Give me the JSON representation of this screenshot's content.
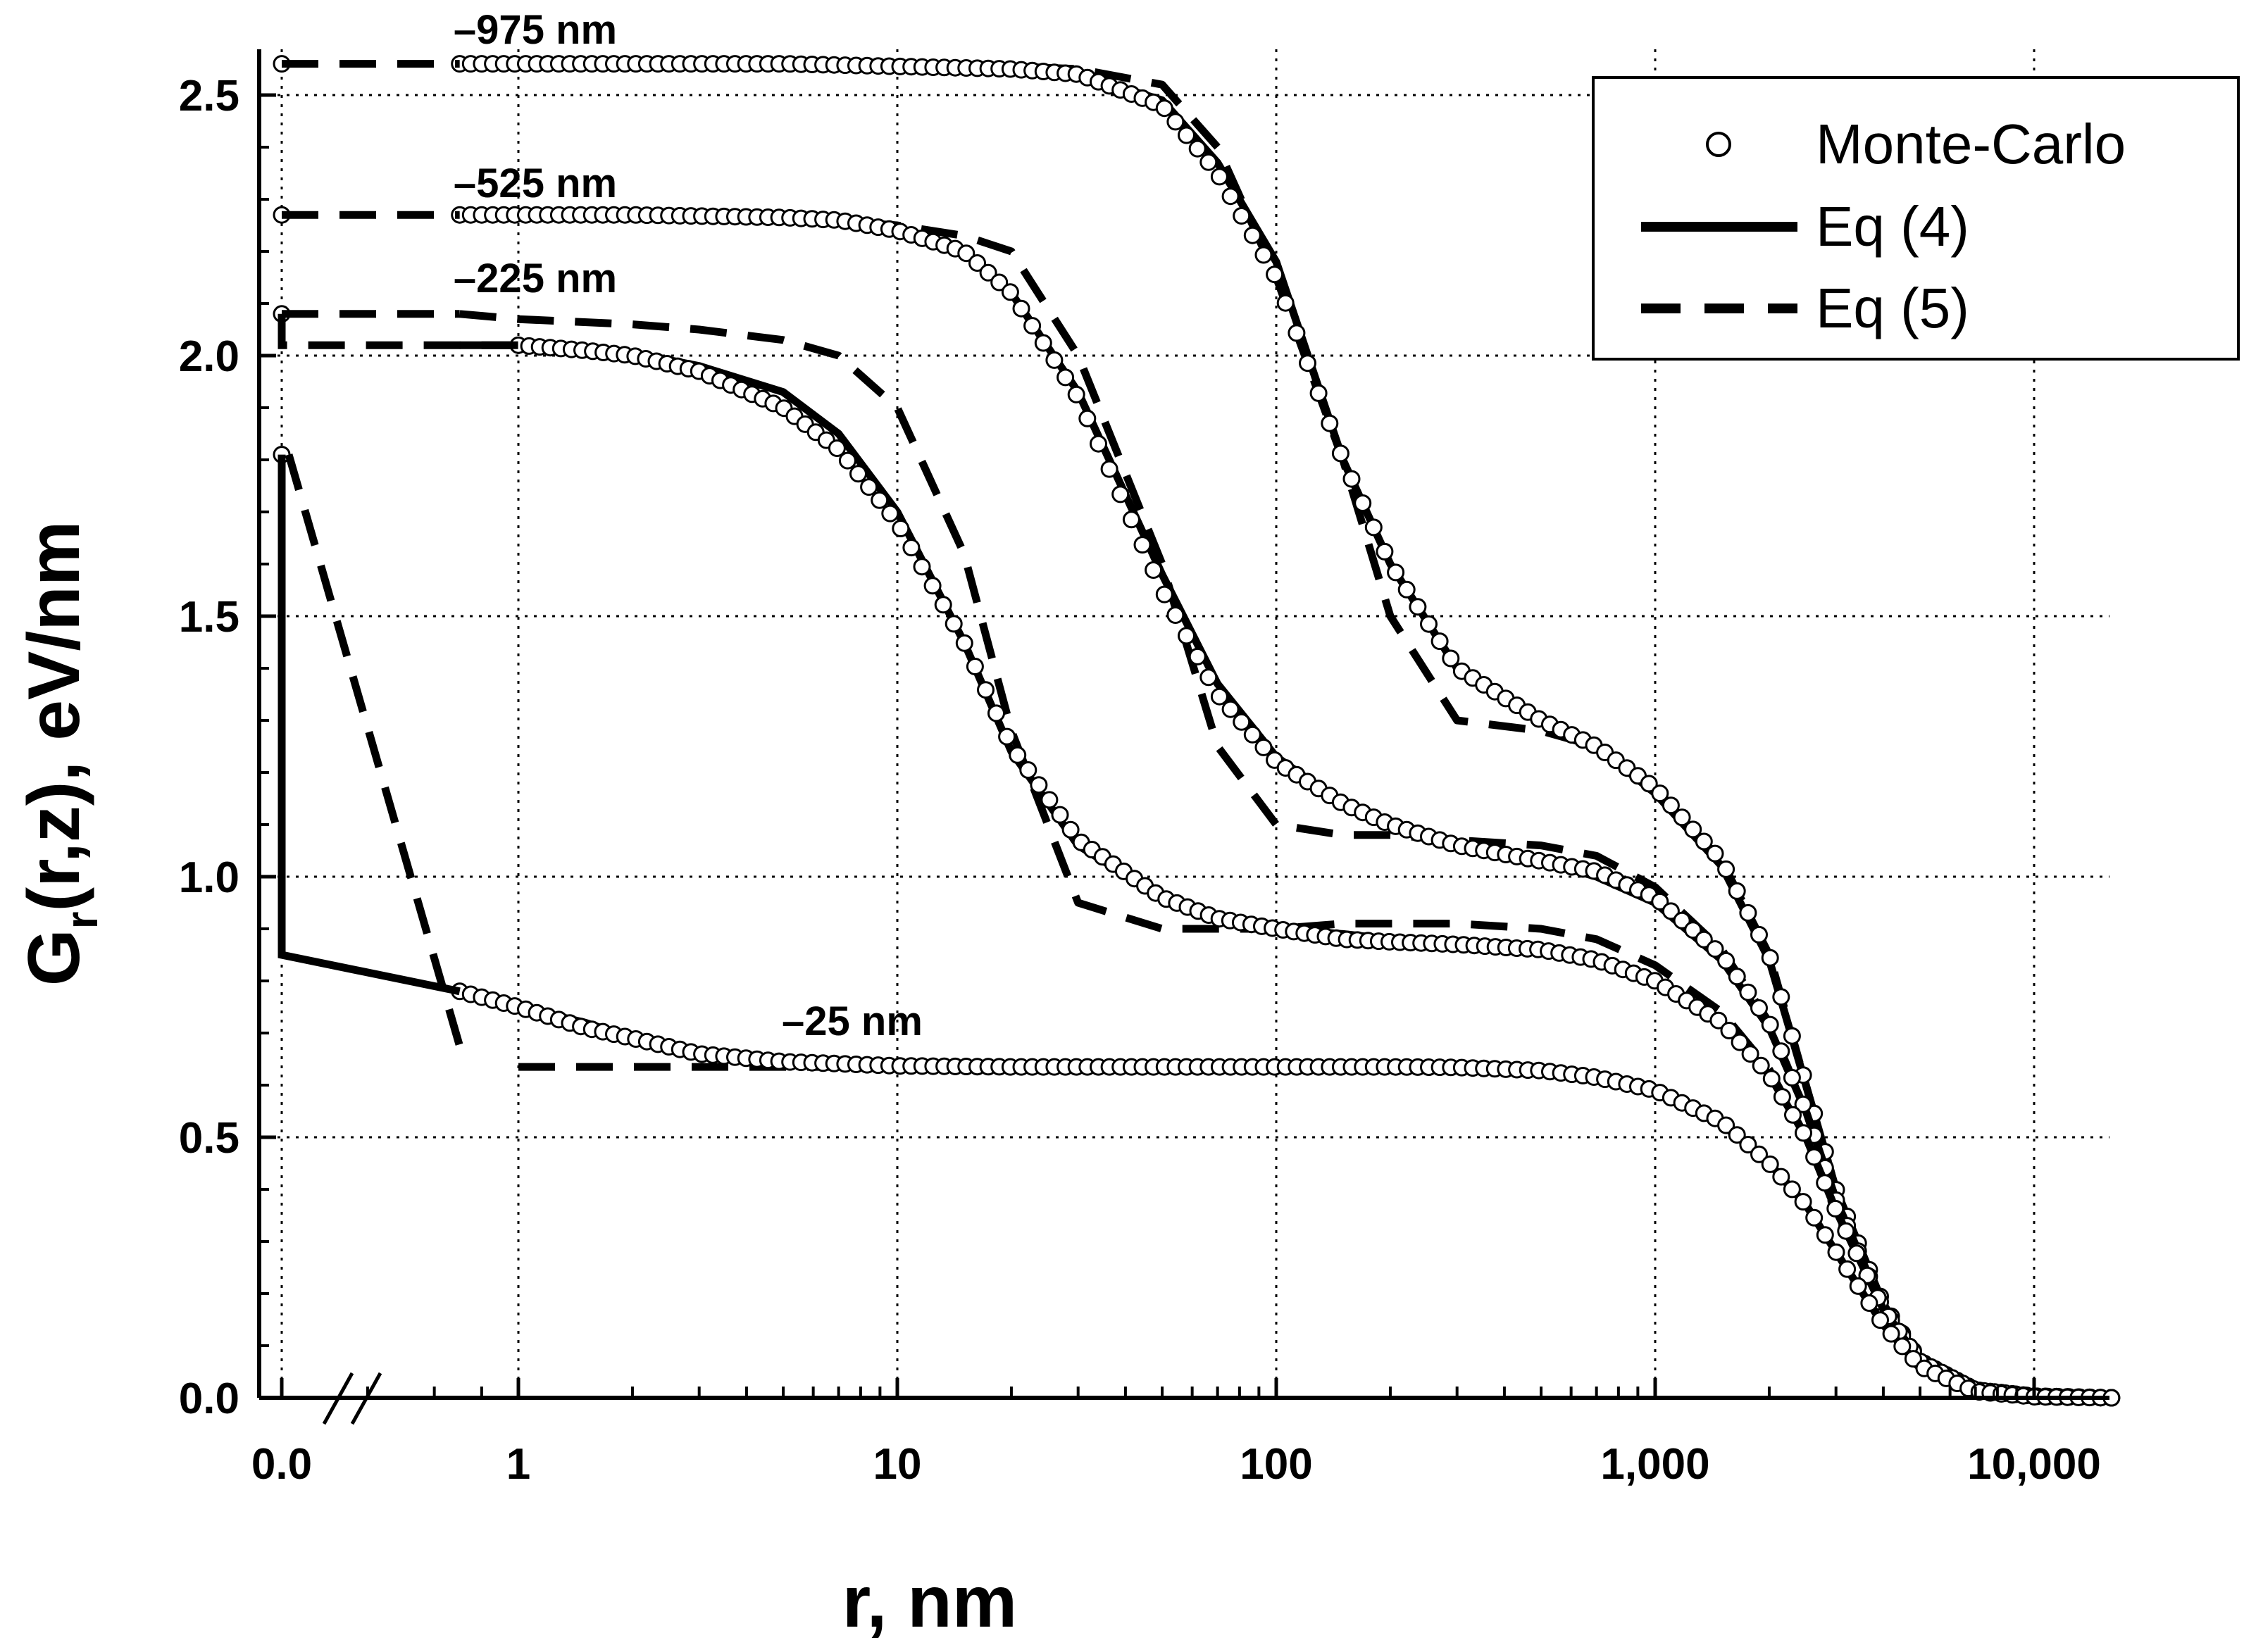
{
  "chart_data": {
    "type": "line",
    "xscale": "log (with broken axis at 0.0)",
    "xlabel": "r, nm",
    "ylabel_main": "G",
    "ylabel_sub": "r",
    "ylabel_rest": "(r,z), eV/nm",
    "xlim": [
      0.0,
      16000
    ],
    "ylim": [
      0.0,
      2.6
    ],
    "x_tick_labels": [
      "0.0",
      "1",
      "10",
      "100",
      "1,000",
      "10,000"
    ],
    "y_tick_labels": [
      "0.0",
      "0.5",
      "1.0",
      "1.5",
      "2.0",
      "2.5"
    ],
    "legend": {
      "position": "top-right",
      "entries": [
        "Monte-Carlo",
        "Eq (4)",
        "Eq (5)"
      ]
    },
    "grid": true,
    "colors": {
      "line": "#000000",
      "background": "#ffffff",
      "grid": "#000000"
    },
    "series": [
      {
        "name": "z = -975 nm",
        "label": "–975 nm",
        "at_zero": 2.56,
        "monte_carlo": [
          [
            0.7,
            2.56
          ],
          [
            2,
            2.56
          ],
          [
            5,
            2.56
          ],
          [
            10,
            2.555
          ],
          [
            20,
            2.55
          ],
          [
            30,
            2.54
          ],
          [
            50,
            2.48
          ],
          [
            70,
            2.35
          ],
          [
            100,
            2.15
          ],
          [
            150,
            1.8
          ],
          [
            200,
            1.6
          ],
          [
            300,
            1.4
          ],
          [
            500,
            1.3
          ],
          [
            700,
            1.25
          ],
          [
            1000,
            1.17
          ],
          [
            1500,
            1.03
          ],
          [
            2000,
            0.85
          ],
          [
            2500,
            0.6
          ],
          [
            3000,
            0.4
          ],
          [
            4000,
            0.18
          ],
          [
            5000,
            0.07
          ],
          [
            7000,
            0.015
          ],
          [
            10000,
            0.003
          ],
          [
            16000,
            0.0
          ]
        ],
        "eq4": [
          [
            0.7,
            2.56
          ],
          [
            2,
            2.56
          ],
          [
            5,
            2.56
          ],
          [
            10,
            2.555
          ],
          [
            20,
            2.55
          ],
          [
            30,
            2.54
          ],
          [
            50,
            2.49
          ],
          [
            70,
            2.37
          ],
          [
            100,
            2.18
          ],
          [
            150,
            1.8
          ],
          [
            200,
            1.6
          ],
          [
            300,
            1.4
          ],
          [
            500,
            1.3
          ],
          [
            700,
            1.25
          ],
          [
            1000,
            1.16
          ],
          [
            1500,
            1.02
          ],
          [
            2000,
            0.84
          ],
          [
            2500,
            0.6
          ],
          [
            3000,
            0.4
          ],
          [
            4000,
            0.18
          ],
          [
            5000,
            0.07
          ],
          [
            7000,
            0.012
          ],
          [
            10000,
            0.002
          ],
          [
            16000,
            0.0
          ]
        ],
        "eq5": [
          [
            0.7,
            2.56
          ],
          [
            2,
            2.56
          ],
          [
            5,
            2.56
          ],
          [
            10,
            2.56
          ],
          [
            20,
            2.555
          ],
          [
            30,
            2.55
          ],
          [
            50,
            2.52
          ],
          [
            70,
            2.4
          ],
          [
            100,
            2.15
          ],
          [
            150,
            1.8
          ],
          [
            200,
            1.5
          ],
          [
            300,
            1.3
          ],
          [
            500,
            1.28
          ],
          [
            700,
            1.25
          ],
          [
            1000,
            1.17
          ],
          [
            1500,
            1.03
          ],
          [
            2000,
            0.85
          ],
          [
            2500,
            0.6
          ],
          [
            3000,
            0.4
          ],
          [
            4000,
            0.18
          ],
          [
            5000,
            0.07
          ],
          [
            7000,
            0.012
          ],
          [
            10000,
            0.002
          ],
          [
            16000,
            0.0
          ]
        ]
      },
      {
        "name": "z = -525 nm",
        "label": "–525 nm",
        "at_zero": 2.27,
        "monte_carlo": [
          [
            0.7,
            2.27
          ],
          [
            2,
            2.27
          ],
          [
            5,
            2.265
          ],
          [
            7,
            2.26
          ],
          [
            10,
            2.24
          ],
          [
            15,
            2.2
          ],
          [
            20,
            2.12
          ],
          [
            30,
            1.92
          ],
          [
            50,
            1.55
          ],
          [
            70,
            1.35
          ],
          [
            100,
            1.22
          ],
          [
            150,
            1.14
          ],
          [
            200,
            1.1
          ],
          [
            300,
            1.06
          ],
          [
            500,
            1.03
          ],
          [
            700,
            1.01
          ],
          [
            1000,
            0.96
          ],
          [
            1500,
            0.85
          ],
          [
            2000,
            0.72
          ],
          [
            2500,
            0.55
          ],
          [
            3000,
            0.38
          ],
          [
            4000,
            0.17
          ],
          [
            5000,
            0.07
          ],
          [
            7000,
            0.015
          ],
          [
            10000,
            0.003
          ],
          [
            16000,
            0.0
          ]
        ],
        "eq4": [
          [
            0.7,
            2.27
          ],
          [
            2,
            2.27
          ],
          [
            5,
            2.265
          ],
          [
            7,
            2.26
          ],
          [
            10,
            2.24
          ],
          [
            15,
            2.2
          ],
          [
            20,
            2.12
          ],
          [
            30,
            1.93
          ],
          [
            50,
            1.58
          ],
          [
            70,
            1.37
          ],
          [
            100,
            1.23
          ],
          [
            150,
            1.14
          ],
          [
            200,
            1.1
          ],
          [
            300,
            1.06
          ],
          [
            500,
            1.03
          ],
          [
            700,
            1.0
          ],
          [
            1000,
            0.95
          ],
          [
            1500,
            0.84
          ],
          [
            2000,
            0.71
          ],
          [
            2500,
            0.55
          ],
          [
            3000,
            0.38
          ],
          [
            4000,
            0.17
          ],
          [
            5000,
            0.07
          ],
          [
            7000,
            0.012
          ],
          [
            10000,
            0.002
          ],
          [
            16000,
            0.0
          ]
        ],
        "eq5": [
          [
            0.7,
            2.27
          ],
          [
            2,
            2.27
          ],
          [
            5,
            2.265
          ],
          [
            10,
            2.25
          ],
          [
            15,
            2.23
          ],
          [
            20,
            2.2
          ],
          [
            30,
            2.0
          ],
          [
            50,
            1.6
          ],
          [
            70,
            1.25
          ],
          [
            100,
            1.1
          ],
          [
            150,
            1.08
          ],
          [
            200,
            1.08
          ],
          [
            300,
            1.07
          ],
          [
            500,
            1.06
          ],
          [
            700,
            1.04
          ],
          [
            1000,
            0.98
          ],
          [
            1500,
            0.86
          ],
          [
            2000,
            0.72
          ],
          [
            2500,
            0.55
          ],
          [
            3000,
            0.38
          ],
          [
            4000,
            0.17
          ],
          [
            5000,
            0.07
          ],
          [
            7000,
            0.012
          ],
          [
            10000,
            0.002
          ],
          [
            16000,
            0.0
          ]
        ]
      },
      {
        "name": "z = -225 nm",
        "label": "–225 nm",
        "at_zero": 2.08,
        "monte_carlo": [
          [
            1,
            2.02
          ],
          [
            1.5,
            2.01
          ],
          [
            2,
            2.0
          ],
          [
            3,
            1.97
          ],
          [
            5,
            1.9
          ],
          [
            7,
            1.82
          ],
          [
            10,
            1.68
          ],
          [
            15,
            1.45
          ],
          [
            20,
            1.25
          ],
          [
            30,
            1.07
          ],
          [
            50,
            0.96
          ],
          [
            70,
            0.92
          ],
          [
            100,
            0.9
          ],
          [
            150,
            0.88
          ],
          [
            200,
            0.875
          ],
          [
            300,
            0.87
          ],
          [
            500,
            0.86
          ],
          [
            700,
            0.84
          ],
          [
            1000,
            0.8
          ],
          [
            1500,
            0.72
          ],
          [
            2000,
            0.62
          ],
          [
            2500,
            0.5
          ],
          [
            3000,
            0.36
          ],
          [
            4000,
            0.17
          ],
          [
            5000,
            0.07
          ],
          [
            7000,
            0.015
          ],
          [
            10000,
            0.003
          ],
          [
            16000,
            0.0
          ]
        ],
        "eq4": [
          [
            0.7,
            2.02
          ],
          [
            1,
            2.02
          ],
          [
            1.5,
            2.015
          ],
          [
            2,
            2.005
          ],
          [
            3,
            1.98
          ],
          [
            5,
            1.93
          ],
          [
            7,
            1.85
          ],
          [
            10,
            1.7
          ],
          [
            15,
            1.45
          ],
          [
            20,
            1.24
          ],
          [
            30,
            1.06
          ],
          [
            50,
            0.96
          ],
          [
            70,
            0.92
          ],
          [
            100,
            0.9
          ],
          [
            150,
            0.89
          ],
          [
            200,
            0.88
          ],
          [
            300,
            0.875
          ],
          [
            500,
            0.86
          ],
          [
            700,
            0.84
          ],
          [
            1000,
            0.8
          ],
          [
            1500,
            0.72
          ],
          [
            2000,
            0.62
          ],
          [
            2500,
            0.5
          ],
          [
            3000,
            0.36
          ],
          [
            4000,
            0.17
          ],
          [
            5000,
            0.07
          ],
          [
            7000,
            0.012
          ],
          [
            10000,
            0.002
          ],
          [
            16000,
            0.0
          ]
        ],
        "eq5": [
          [
            0.7,
            2.08
          ],
          [
            1,
            2.07
          ],
          [
            2,
            2.06
          ],
          [
            3,
            2.05
          ],
          [
            5,
            2.03
          ],
          [
            7,
            2.0
          ],
          [
            10,
            1.9
          ],
          [
            15,
            1.62
          ],
          [
            20,
            1.28
          ],
          [
            30,
            0.95
          ],
          [
            50,
            0.9
          ],
          [
            70,
            0.9
          ],
          [
            100,
            0.9
          ],
          [
            150,
            0.91
          ],
          [
            200,
            0.91
          ],
          [
            300,
            0.91
          ],
          [
            500,
            0.9
          ],
          [
            700,
            0.88
          ],
          [
            1000,
            0.83
          ],
          [
            1500,
            0.74
          ],
          [
            2000,
            0.63
          ],
          [
            2500,
            0.5
          ],
          [
            3000,
            0.36
          ],
          [
            4000,
            0.17
          ],
          [
            5000,
            0.07
          ],
          [
            7000,
            0.012
          ],
          [
            10000,
            0.002
          ],
          [
            16000,
            0.0
          ]
        ]
      },
      {
        "name": "z = -25 nm",
        "label": "–25 nm",
        "at_zero": 1.81,
        "monte_carlo": [
          [
            0.7,
            0.78
          ],
          [
            1,
            0.75
          ],
          [
            1.5,
            0.71
          ],
          [
            2,
            0.69
          ],
          [
            3,
            0.66
          ],
          [
            5,
            0.645
          ],
          [
            10,
            0.637
          ],
          [
            20,
            0.635
          ],
          [
            50,
            0.635
          ],
          [
            100,
            0.635
          ],
          [
            200,
            0.635
          ],
          [
            300,
            0.634
          ],
          [
            500,
            0.628
          ],
          [
            700,
            0.615
          ],
          [
            1000,
            0.59
          ],
          [
            1500,
            0.53
          ],
          [
            2000,
            0.45
          ],
          [
            2500,
            0.37
          ],
          [
            3000,
            0.28
          ],
          [
            4000,
            0.14
          ],
          [
            5000,
            0.06
          ],
          [
            7000,
            0.012
          ],
          [
            10000,
            0.002
          ],
          [
            16000,
            0.0
          ]
        ],
        "eq4": [
          [
            0.7,
            0.78
          ],
          [
            1,
            0.75
          ],
          [
            1.5,
            0.72
          ],
          [
            2,
            0.69
          ],
          [
            3,
            0.66
          ],
          [
            5,
            0.645
          ],
          [
            10,
            0.637
          ],
          [
            20,
            0.635
          ],
          [
            50,
            0.635
          ],
          [
            100,
            0.635
          ],
          [
            200,
            0.635
          ],
          [
            300,
            0.633
          ],
          [
            500,
            0.627
          ],
          [
            700,
            0.612
          ],
          [
            1000,
            0.585
          ],
          [
            1500,
            0.525
          ],
          [
            2000,
            0.45
          ],
          [
            2500,
            0.37
          ],
          [
            3000,
            0.28
          ],
          [
            4000,
            0.14
          ],
          [
            5000,
            0.06
          ],
          [
            7000,
            0.012
          ],
          [
            10000,
            0.002
          ],
          [
            16000,
            0.0
          ]
        ],
        "eq5": [
          [
            1,
            0.635
          ],
          [
            2,
            0.635
          ],
          [
            5,
            0.635
          ],
          [
            10,
            0.635
          ],
          [
            20,
            0.635
          ],
          [
            50,
            0.635
          ],
          [
            100,
            0.635
          ],
          [
            200,
            0.635
          ],
          [
            300,
            0.633
          ],
          [
            500,
            0.627
          ],
          [
            700,
            0.612
          ],
          [
            1000,
            0.585
          ],
          [
            1500,
            0.525
          ],
          [
            2000,
            0.45
          ],
          [
            2500,
            0.37
          ],
          [
            3000,
            0.28
          ],
          [
            4000,
            0.14
          ],
          [
            5000,
            0.06
          ],
          [
            7000,
            0.012
          ],
          [
            10000,
            0.002
          ],
          [
            16000,
            0.0
          ]
        ]
      }
    ],
    "eq4_break_segment": {
      "note": "vertical drop at r = 0 then line into break gap",
      "top": 1.81,
      "bottom": 0.85,
      "to": [
        0.7,
        0.78
      ]
    },
    "eq5_break_segment": {
      "note": "dashed diagonal from r = 0 to r = 0.7",
      "from": 1.81,
      "to": 0.65
    }
  }
}
